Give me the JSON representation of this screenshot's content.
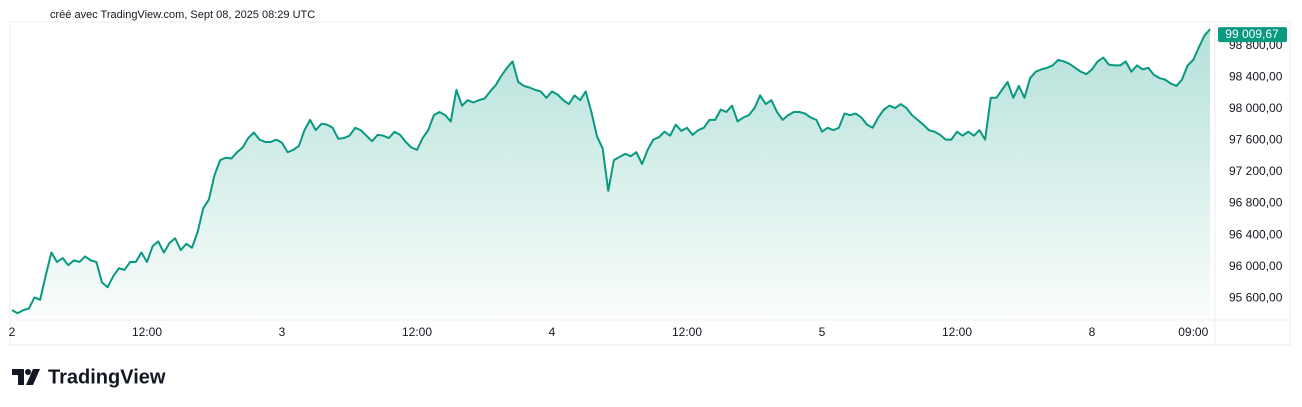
{
  "header": "créé avec TradingView.com, Sept 08, 2025 08:29 UTC",
  "brand": "TradingView",
  "chart_data": {
    "type": "area",
    "color": "#089981",
    "categories": [
      "2",
      null,
      null,
      null,
      null,
      null,
      null,
      null,
      null,
      null,
      null,
      null,
      null,
      null,
      null,
      null,
      null,
      null,
      null,
      null,
      null,
      null,
      null,
      null,
      "12:00",
      null,
      null,
      null,
      null,
      null,
      null,
      null,
      null,
      null,
      null,
      null,
      null,
      null,
      null,
      null,
      null,
      null,
      null,
      null,
      null,
      null,
      null,
      null,
      "3",
      null,
      null,
      null,
      null,
      null,
      null,
      null,
      null,
      null,
      null,
      null,
      null,
      null,
      null,
      null,
      null,
      null,
      null,
      null,
      null,
      null,
      null,
      null,
      "12:00",
      null,
      null,
      null,
      null,
      null,
      null,
      null,
      null,
      null,
      null,
      null,
      null,
      null,
      null,
      null,
      null,
      null,
      null,
      null,
      null,
      null,
      null,
      null,
      "4",
      null,
      null,
      null,
      null,
      null,
      null,
      null,
      null,
      null,
      null,
      null,
      null,
      null,
      null,
      null,
      null,
      null,
      null,
      null,
      null,
      null,
      null,
      null,
      "12:00",
      null,
      null,
      null,
      null,
      null,
      null,
      null,
      null,
      null,
      null,
      null,
      null,
      null,
      null,
      null,
      null,
      null,
      null,
      null,
      null,
      null,
      null,
      null,
      "5",
      null,
      null,
      null,
      null,
      null,
      null,
      null,
      null,
      null,
      null,
      null,
      null,
      null,
      null,
      null,
      null,
      null,
      null,
      null,
      null,
      null,
      null,
      null,
      "12:00",
      null,
      null,
      null,
      null,
      null,
      null,
      null,
      null,
      null,
      null,
      null,
      null,
      null,
      null,
      null,
      null,
      null,
      null,
      null,
      null,
      null,
      null,
      null,
      "8",
      null,
      null,
      null,
      null,
      null,
      null,
      null,
      null,
      null,
      null,
      null,
      null,
      null,
      null,
      null,
      null,
      null,
      "09:00",
      null,
      null,
      null
    ],
    "values": [
      95450,
      95410,
      95450,
      95470,
      95610,
      95580,
      95890,
      96180,
      96060,
      96110,
      96020,
      96080,
      96060,
      96130,
      96080,
      96060,
      95800,
      95740,
      95880,
      95980,
      95960,
      96060,
      96060,
      96180,
      96060,
      96260,
      96320,
      96180,
      96300,
      96360,
      96210,
      96290,
      96240,
      96440,
      96740,
      96850,
      97160,
      97350,
      97380,
      97370,
      97450,
      97510,
      97630,
      97700,
      97610,
      97580,
      97580,
      97610,
      97570,
      97450,
      97480,
      97530,
      97730,
      97860,
      97730,
      97810,
      97800,
      97760,
      97620,
      97630,
      97660,
      97760,
      97730,
      97660,
      97590,
      97670,
      97660,
      97630,
      97710,
      97670,
      97580,
      97510,
      97480,
      97630,
      97730,
      97920,
      97960,
      97920,
      97840,
      98240,
      98040,
      98110,
      98080,
      98110,
      98130,
      98220,
      98300,
      98420,
      98520,
      98600,
      98340,
      98290,
      98270,
      98240,
      98220,
      98140,
      98220,
      98180,
      98110,
      98060,
      98170,
      98110,
      98220,
      97960,
      97650,
      97500,
      96960,
      97350,
      97390,
      97430,
      97400,
      97450,
      97300,
      97480,
      97610,
      97640,
      97710,
      97660,
      97800,
      97720,
      97760,
      97670,
      97730,
      97760,
      97860,
      97860,
      97990,
      97960,
      98040,
      97840,
      97890,
      97920,
      98010,
      98170,
      98060,
      98110,
      97960,
      97860,
      97920,
      97960,
      97960,
      97940,
      97890,
      97860,
      97710,
      97760,
      97730,
      97760,
      97940,
      97920,
      97940,
      97890,
      97800,
      97760,
      97890,
      97990,
      98040,
      98010,
      98060,
      98010,
      97920,
      97860,
      97800,
      97730,
      97710,
      97670,
      97610,
      97610,
      97710,
      97660,
      97710,
      97660,
      97730,
      97610,
      98140,
      98140,
      98240,
      98340,
      98140,
      98290,
      98140,
      98390,
      98470,
      98500,
      98520,
      98550,
      98620,
      98600,
      98570,
      98520,
      98470,
      98440,
      98500,
      98600,
      98650,
      98560,
      98550,
      98550,
      98600,
      98470,
      98550,
      98500,
      98520,
      98430,
      98390,
      98370,
      98320,
      98290,
      98370,
      98550,
      98620,
      98780,
      98930,
      99009.67
    ],
    "price_label": "99 009,67",
    "ylim": [
      95350,
      99100
    ],
    "yticks": [
      {
        "value": 95600,
        "label": "95 600,00"
      },
      {
        "value": 96000,
        "label": "96 000,00"
      },
      {
        "value": 96400,
        "label": "96 400,00"
      },
      {
        "value": 96800,
        "label": "96 800,00"
      },
      {
        "value": 97200,
        "label": "97 200,00"
      },
      {
        "value": 97600,
        "label": "97 600,00"
      },
      {
        "value": 98000,
        "label": "98 000,00"
      },
      {
        "value": 98400,
        "label": "98 400,00"
      },
      {
        "value": 98800,
        "label": "98 800,00"
      }
    ],
    "grid": false
  }
}
